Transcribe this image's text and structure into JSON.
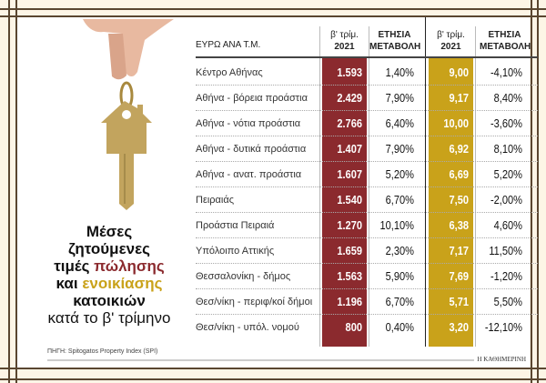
{
  "title": {
    "line1": "Μέσες",
    "line2": "ζητούμενες",
    "line3a": "τιμές ",
    "line3b": "πώλησης",
    "line4a": "και ",
    "line4b": "ενοικίασης",
    "line5": "κατοικιών",
    "line6": "κατά το β' τρίμηνο"
  },
  "source": "ΠΗΓΗ: Spitogatos Property Index (SPI)",
  "brand": "Η ΚΑΘΗΜΕΡΙΝΗ",
  "colors": {
    "sale": "#8b2a2e",
    "rent": "#c9a21a",
    "frame": "#5a4630"
  },
  "image": "hand-holding-house-key",
  "chart_data": {
    "type": "table",
    "headers": {
      "label": "ΕΥΡΩ ΑΝΑ Τ.Μ.",
      "sale_q_top": "β' τρίμ.",
      "sale_q_year": "2021",
      "sale_change": [
        "ΕΤΗΣΙΑ",
        "ΜΕΤΑΒΟΛΗ"
      ],
      "rent_q_top": "β' τρίμ.",
      "rent_q_year": "2021",
      "rent_change": [
        "ΕΤΗΣΙΑ",
        "ΜΕΤΑΒΟΛΗ"
      ]
    },
    "rows": [
      {
        "label": "Κέντρο Αθήνας",
        "sale": "1.593",
        "sale_change": "1,40%",
        "rent": "9,00",
        "rent_change": "-4,10%"
      },
      {
        "label": "Αθήνα - βόρεια προάστια",
        "sale": "2.429",
        "sale_change": "7,90%",
        "rent": "9,17",
        "rent_change": "8,40%"
      },
      {
        "label": "Αθήνα - νότια προάστια",
        "sale": "2.766",
        "sale_change": "6,40%",
        "rent": "10,00",
        "rent_change": "-3,60%"
      },
      {
        "label": "Αθήνα - δυτικά προάστια",
        "sale": "1.407",
        "sale_change": "7,90%",
        "rent": "6,92",
        "rent_change": "8,10%"
      },
      {
        "label": "Αθήνα - ανατ. προάστια",
        "sale": "1.607",
        "sale_change": "5,20%",
        "rent": "6,69",
        "rent_change": "5,20%"
      },
      {
        "label": "Πειραιάς",
        "sale": "1.540",
        "sale_change": "6,70%",
        "rent": "7,50",
        "rent_change": "-2,00%"
      },
      {
        "label": "Προάστια Πειραιά",
        "sale": "1.270",
        "sale_change": "10,10%",
        "rent": "6,38",
        "rent_change": "4,60%"
      },
      {
        "label": "Υπόλοιπο Αττικής",
        "sale": "1.659",
        "sale_change": "2,30%",
        "rent": "7,17",
        "rent_change": "11,50%"
      },
      {
        "label": "Θεσσαλονίκη - δήμος",
        "sale": "1.563",
        "sale_change": "5,90%",
        "rent": "7,69",
        "rent_change": "-1,20%"
      },
      {
        "label": "Θεσ/νίκη - περιφ/κοί δήμοι",
        "sale": "1.196",
        "sale_change": "6,70%",
        "rent": "5,71",
        "rent_change": "5,50%"
      },
      {
        "label": "Θεσ/νίκη - υπόλ. νομού",
        "sale": "800",
        "sale_change": "0,40%",
        "rent": "3,20",
        "rent_change": "-12,10%"
      }
    ]
  }
}
